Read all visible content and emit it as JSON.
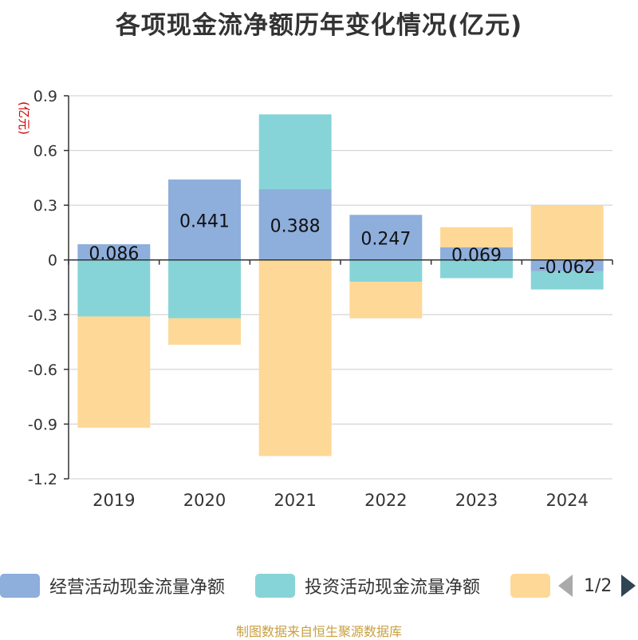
{
  "title": "各项现金流净额历年变化情况(亿元)",
  "source": "制图数据来自恒生聚源数据库",
  "chart_data": {
    "type": "bar",
    "stacked": true,
    "unit_label": "(亿元)",
    "categories": [
      "2019",
      "2020",
      "2021",
      "2022",
      "2023",
      "2024"
    ],
    "ylim": [
      -1.2,
      0.9
    ],
    "yticks": [
      "0.9",
      "0.6",
      "0.3",
      "0",
      "-0.3",
      "-0.6",
      "-0.9",
      "-1.2"
    ],
    "grid": true,
    "legend_position": "bottom",
    "series": [
      {
        "name": "经营活动现金流量净额",
        "color": "#8eaedb",
        "values": [
          0.086,
          0.441,
          0.388,
          0.247,
          0.069,
          -0.062
        ],
        "labels": [
          "0.086",
          "0.441",
          "0.388",
          "0.247",
          "0.069",
          "-0.062"
        ]
      },
      {
        "name": "投资活动现金流量净额",
        "color": "#86d4d8",
        "values": [
          -0.31,
          -0.32,
          0.41,
          -0.12,
          -0.1,
          -0.1
        ]
      },
      {
        "name": "",
        "color": "#fed896",
        "values": [
          -0.61,
          -0.145,
          -1.075,
          -0.2,
          0.11,
          0.3
        ]
      }
    ]
  },
  "legend": {
    "items": [
      "经营活动现金流量净额",
      "投资活动现金流量净额",
      ""
    ],
    "page": "1/2"
  },
  "colors": {
    "axis": "#333333",
    "grid": "#cccccc",
    "unit_label": "#cc0000",
    "pager_active": "#2f4554",
    "pager_inactive": "#aaaaaa"
  }
}
